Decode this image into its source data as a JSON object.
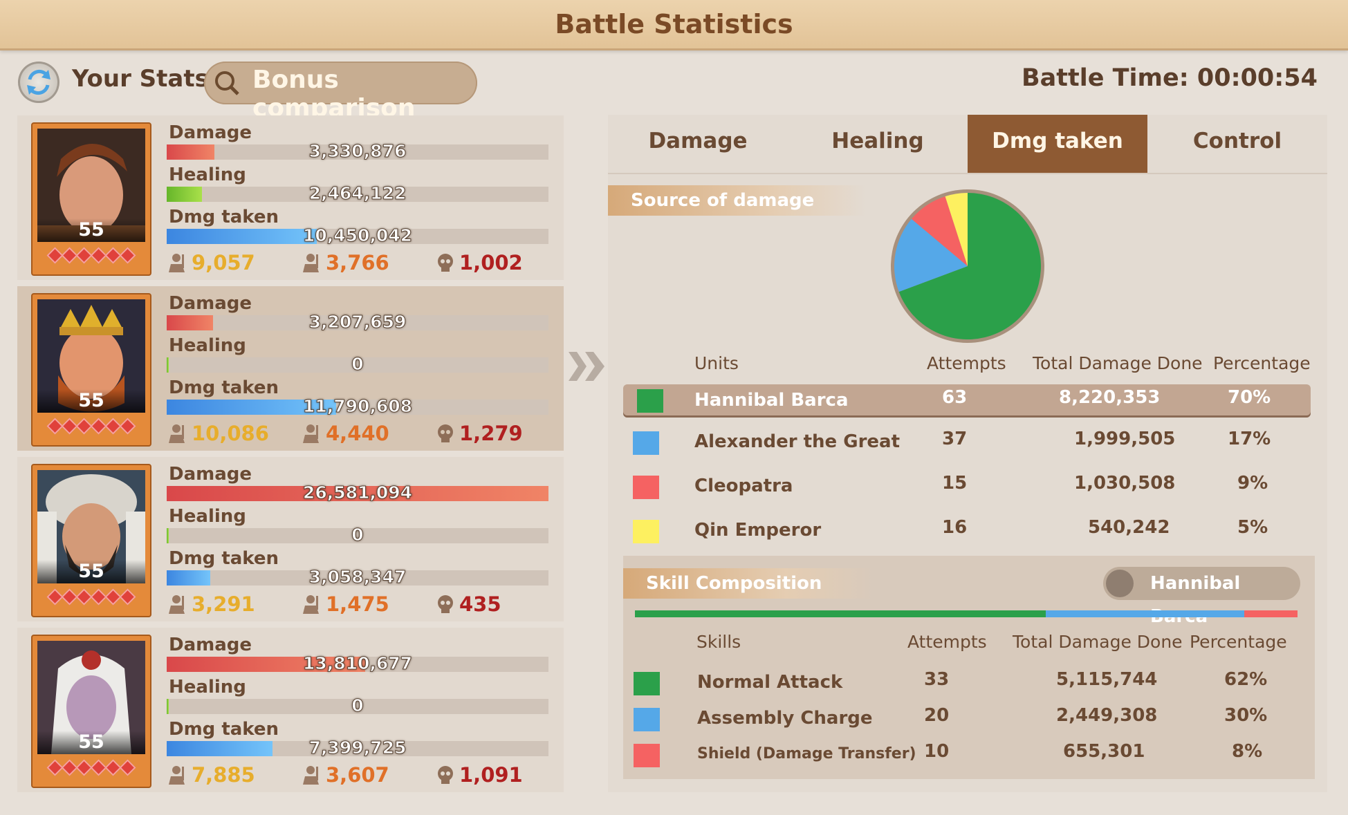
{
  "header": {
    "title": "Battle Statistics"
  },
  "toolbar": {
    "your_stats": "Your Stats",
    "bonus_comparison": "Bonus comparison",
    "battle_time": "Battle Time: 00:00:54"
  },
  "heroes": [
    {
      "level": "55",
      "damage_label": "Damage",
      "damage": "3,330,876",
      "damage_ratio": 0.125,
      "healing_label": "Healing",
      "healing": "2,464,122",
      "healing_ratio": 0.092,
      "taken_label": "Dmg taken",
      "taken": "10,450,042",
      "taken_ratio": 0.393,
      "count_a": "9,057",
      "count_b": "3,766",
      "count_c": "1,002"
    },
    {
      "level": "55",
      "damage_label": "Damage",
      "damage": "3,207,659",
      "damage_ratio": 0.121,
      "healing_label": "Healing",
      "healing": "0",
      "healing_ratio": 0,
      "taken_label": "Dmg taken",
      "taken": "11,790,608",
      "taken_ratio": 0.444,
      "count_a": "10,086",
      "count_b": "4,440",
      "count_c": "1,279"
    },
    {
      "level": "55",
      "damage_label": "Damage",
      "damage": "26,581,094",
      "damage_ratio": 1.0,
      "healing_label": "Healing",
      "healing": "0",
      "healing_ratio": 0,
      "taken_label": "Dmg taken",
      "taken": "3,058,347",
      "taken_ratio": 0.115,
      "count_a": "3,291",
      "count_b": "1,475",
      "count_c": "435"
    },
    {
      "level": "55",
      "damage_label": "Damage",
      "damage": "13,810,677",
      "damage_ratio": 0.52,
      "healing_label": "Healing",
      "healing": "0",
      "healing_ratio": 0,
      "taken_label": "Dmg taken",
      "taken": "7,399,725",
      "taken_ratio": 0.278,
      "count_a": "7,885",
      "count_b": "3,607",
      "count_c": "1,091"
    }
  ],
  "tabs": [
    "Damage",
    "Healing",
    "Dmg taken",
    "Control"
  ],
  "active_tab": "Dmg taken",
  "source": {
    "header": "Source of damage",
    "columns": [
      "Units",
      "Attempts",
      "Total Damage Done",
      "Percentage"
    ],
    "rows": [
      {
        "name": "Hannibal Barca",
        "attempts": "63",
        "total": "8,220,353",
        "pct": "70%",
        "color": "#2ba04a"
      },
      {
        "name": "Alexander the Great",
        "attempts": "37",
        "total": "1,999,505",
        "pct": "17%",
        "color": "#55a8e8"
      },
      {
        "name": "Cleopatra",
        "attempts": "15",
        "total": "1,030,508",
        "pct": "9%",
        "color": "#f56262"
      },
      {
        "name": "Qin Emperor",
        "attempts": "16",
        "total": "540,242",
        "pct": "5%",
        "color": "#fdf060"
      }
    ]
  },
  "chart_data": {
    "type": "pie",
    "categories": [
      "Hannibal Barca",
      "Alexander the Great",
      "Cleopatra",
      "Qin Emperor"
    ],
    "values": [
      70,
      17,
      9,
      5
    ],
    "colors": [
      "#2ba04a",
      "#55a8e8",
      "#f56262",
      "#fdf060"
    ]
  },
  "skills": {
    "header": "Skill Composition",
    "hero": "Hannibal Barca",
    "columns": [
      "Skills",
      "Attempts",
      "Total Damage Done",
      "Percentage"
    ],
    "rows": [
      {
        "name": "Normal Attack",
        "attempts": "33",
        "total": "5,115,744",
        "pct": "62%",
        "color": "#2ba04a",
        "share": 0.62
      },
      {
        "name": "Assembly Charge",
        "attempts": "20",
        "total": "2,449,308",
        "pct": "30%",
        "color": "#55a8e8",
        "share": 0.3
      },
      {
        "name": "Shield (Damage Transfer)",
        "attempts": "10",
        "total": "655,301",
        "pct": "8%",
        "color": "#f56262",
        "share": 0.08
      }
    ]
  }
}
